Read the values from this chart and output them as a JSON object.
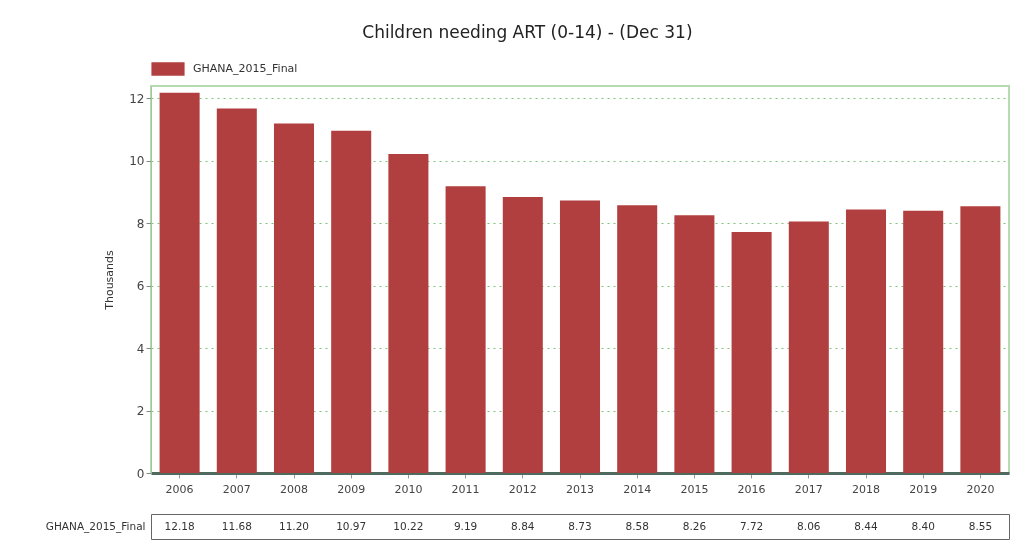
{
  "chart_data": {
    "type": "bar",
    "title": "Children needing ART (0-14) - (Dec 31)",
    "ylabel": "Thousands",
    "categories": [
      "2006",
      "2007",
      "2008",
      "2009",
      "2010",
      "2011",
      "2012",
      "2013",
      "2014",
      "2015",
      "2016",
      "2017",
      "2018",
      "2019",
      "2020"
    ],
    "series": [
      {
        "name": "GHANA_2015_Final",
        "color": "#b23f3f",
        "values": [
          12.18,
          11.68,
          11.2,
          10.97,
          10.22,
          9.19,
          8.84,
          8.73,
          8.58,
          8.26,
          7.72,
          8.06,
          8.44,
          8.4,
          8.55
        ],
        "value_labels": [
          "12.18",
          "11.68",
          "11.20",
          "10.97",
          "10.22",
          "9.19",
          "8.84",
          "8.73",
          "8.58",
          "8.26",
          "7.72",
          "8.06",
          "8.44",
          "8.40",
          "8.55"
        ]
      }
    ],
    "ylim": [
      0,
      12.4
    ],
    "yticks": [
      0,
      2,
      4,
      6,
      8,
      10,
      12
    ],
    "grid": "y",
    "legend": "top left"
  }
}
